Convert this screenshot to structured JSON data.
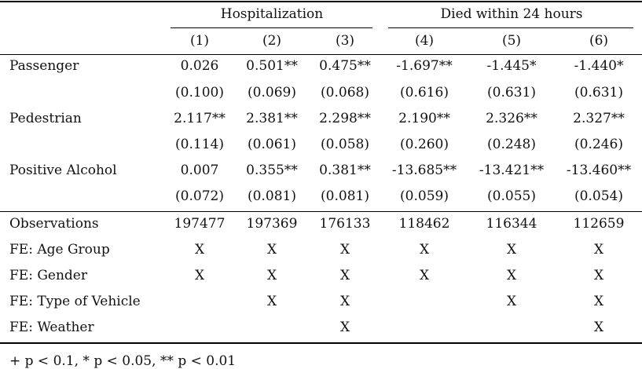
{
  "table": {
    "group_headers": [
      "Hospitalization",
      "Died within 24 hours"
    ],
    "column_numbers": [
      "(1)",
      "(2)",
      "(3)",
      "(4)",
      "(5)",
      "(6)"
    ],
    "coef_rows": [
      {
        "label": "Passenger",
        "coefs": [
          "0.026",
          "0.501**",
          "0.475**",
          "-1.697**",
          "-1.445*",
          "-1.440*"
        ],
        "ses": [
          "(0.100)",
          "(0.069)",
          "(0.068)",
          "(0.616)",
          "(0.631)",
          "(0.631)"
        ]
      },
      {
        "label": "Pedestrian",
        "coefs": [
          "2.117**",
          "2.381**",
          "2.298**",
          "2.190**",
          "2.326**",
          "2.327**"
        ],
        "ses": [
          "(0.114)",
          "(0.061)",
          "(0.058)",
          "(0.260)",
          "(0.248)",
          "(0.246)"
        ]
      },
      {
        "label": "Positive Alcohol",
        "coefs": [
          "0.007",
          "0.355**",
          "0.381**",
          "-13.685**",
          "-13.421**",
          "-13.460**"
        ],
        "ses": [
          "(0.072)",
          "(0.081)",
          "(0.081)",
          "(0.059)",
          "(0.055)",
          "(0.054)"
        ]
      }
    ],
    "stat_rows": [
      {
        "label": "Observations",
        "values": [
          "197477",
          "197369",
          "176133",
          "118462",
          "116344",
          "112659"
        ]
      },
      {
        "label": "FE: Age Group",
        "values": [
          "X",
          "X",
          "X",
          "X",
          "X",
          "X"
        ]
      },
      {
        "label": "FE: Gender",
        "values": [
          "X",
          "X",
          "X",
          "X",
          "X",
          "X"
        ]
      },
      {
        "label": "FE: Type of Vehicle",
        "values": [
          "",
          "X",
          "X",
          "",
          "X",
          "X"
        ]
      },
      {
        "label": "FE: Weather",
        "values": [
          "",
          "",
          "X",
          "",
          "",
          "X"
        ]
      }
    ],
    "note": "+ p < 0.1, * p < 0.05, ** p < 0.01"
  }
}
